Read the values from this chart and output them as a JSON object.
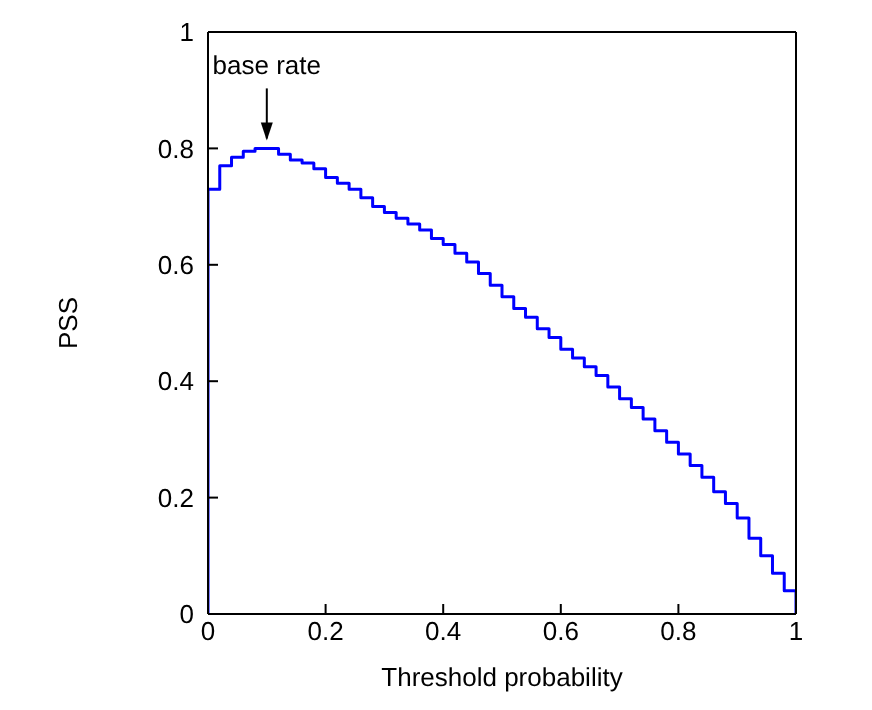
{
  "chart_data": {
    "type": "step",
    "xlabel": "Threshold probability",
    "ylabel": "PSS",
    "x": [
      0,
      0,
      0.02,
      0.04,
      0.06,
      0.08,
      0.1,
      0.12,
      0.14,
      0.16,
      0.18,
      0.2,
      0.22,
      0.24,
      0.26,
      0.28,
      0.3,
      0.32,
      0.34,
      0.36,
      0.38,
      0.4,
      0.42,
      0.44,
      0.46,
      0.48,
      0.5,
      0.52,
      0.54,
      0.56,
      0.58,
      0.6,
      0.62,
      0.64,
      0.66,
      0.68,
      0.7,
      0.72,
      0.74,
      0.76,
      0.78,
      0.8,
      0.82,
      0.84,
      0.86,
      0.88,
      0.9,
      0.92,
      0.94,
      0.96,
      0.98,
      1
    ],
    "series": [
      {
        "color": "#0000ff",
        "values": [
          0,
          0.73,
          0.77,
          0.785,
          0.795,
          0.8,
          0.8,
          0.79,
          0.78,
          0.775,
          0.765,
          0.75,
          0.74,
          0.73,
          0.715,
          0.7,
          0.69,
          0.68,
          0.67,
          0.66,
          0.645,
          0.635,
          0.62,
          0.605,
          0.585,
          0.565,
          0.545,
          0.525,
          0.51,
          0.49,
          0.475,
          0.455,
          0.44,
          0.425,
          0.41,
          0.39,
          0.37,
          0.355,
          0.335,
          0.315,
          0.295,
          0.275,
          0.255,
          0.235,
          0.21,
          0.19,
          0.165,
          0.13,
          0.1,
          0.07,
          0.04,
          0
        ]
      }
    ],
    "xlim": [
      0,
      1
    ],
    "ylim": [
      0,
      1
    ],
    "xticks": [
      0,
      0.2,
      0.4,
      0.6,
      0.8,
      1
    ],
    "yticks": [
      0,
      0.2,
      0.4,
      0.6,
      0.8,
      1
    ],
    "grid": false,
    "legend": false,
    "marker": "none",
    "line_style": "solid",
    "annotations": [
      {
        "text": "base rate",
        "x": 0.1,
        "y": 0.8
      }
    ]
  }
}
